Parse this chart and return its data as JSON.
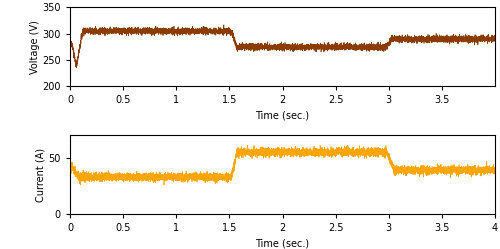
{
  "voltage_color": "#8B3A00",
  "current_color": "#FFA500",
  "axis_bg_color": "#FFFFFF",
  "fig_bg_color": "#FFFFFF",
  "voltage_ylim": [
    200,
    350
  ],
  "voltage_yticks": [
    200,
    250,
    300,
    350
  ],
  "current_ylim": [
    0,
    70
  ],
  "current_yticks": [
    0,
    50
  ],
  "xlim_voltage": [
    0,
    4.0
  ],
  "xlim_current": [
    0,
    4.0
  ],
  "xticks_voltage": [
    0,
    0.5,
    1,
    1.5,
    2,
    2.5,
    3,
    3.5
  ],
  "xticks_current": [
    0,
    0.5,
    1,
    1.5,
    2,
    2.5,
    3,
    3.5,
    4
  ],
  "xlabel": "Time (sec.)",
  "ylabel_voltage": "Voltage (V)",
  "ylabel_current": "Current (A)",
  "noise_amp_voltage": 3.0,
  "noise_amp_current": 1.8,
  "fig_width": 5.0,
  "fig_height": 2.49,
  "dpi": 100
}
